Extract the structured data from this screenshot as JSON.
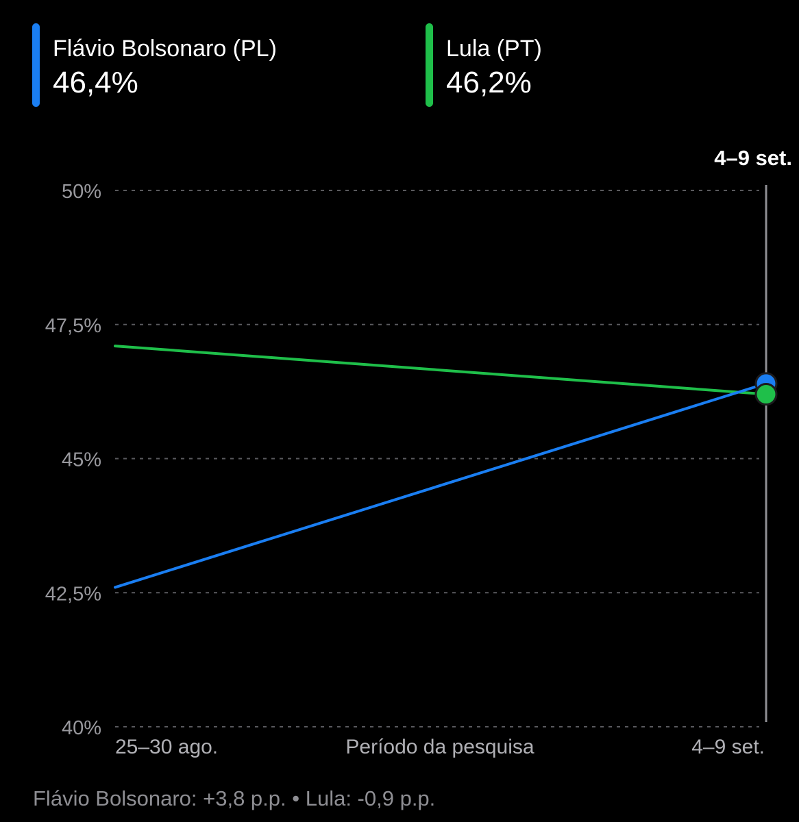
{
  "legend": [
    {
      "name": "Flávio Bolsonaro (PL)",
      "value": "46,4%",
      "color": "#1a7ef2"
    },
    {
      "name": "Lula (PT)",
      "value": "46,2%",
      "color": "#1fbf4a"
    }
  ],
  "footer": {
    "text": "Flávio Bolsonaro: +3,8 p.p. • Lula: -0,9 p.p."
  },
  "chart_data": {
    "type": "line",
    "xlabel": "Período da pesquisa",
    "ylabel": "",
    "categories": [
      "25–30 ago.",
      "4–9 set."
    ],
    "ylim": [
      40,
      50
    ],
    "yticks": [
      40,
      42.5,
      45,
      47.5,
      50
    ],
    "ytick_labels": [
      "40%",
      "42,5%",
      "45%",
      "47,5%",
      "50%"
    ],
    "selected": {
      "category_index": 1,
      "label": "4–9 set."
    },
    "grid": "horizontal-dashed",
    "series": [
      {
        "name": "Flávio Bolsonaro (PL)",
        "values": [
          42.6,
          46.4
        ],
        "color": "#1a7ef2"
      },
      {
        "name": "Lula (PT)",
        "values": [
          47.1,
          46.2
        ],
        "color": "#1fbf4a"
      }
    ]
  }
}
